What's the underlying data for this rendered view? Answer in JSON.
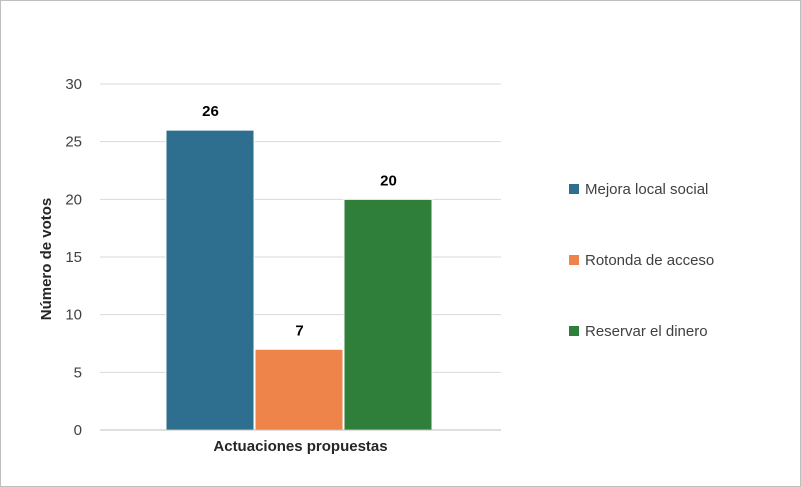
{
  "chart_data": {
    "type": "bar",
    "title": "",
    "xlabel": "Actuaciones propuestas",
    "ylabel": "Número de votos",
    "ylim": [
      0,
      30
    ],
    "yticks": [
      0,
      5,
      10,
      15,
      20,
      25,
      30
    ],
    "grid": true,
    "legend_position": "right",
    "categories": [
      "Actuaciones propuestas"
    ],
    "series": [
      {
        "name": "Mejora local social",
        "values": [
          26
        ],
        "color": "#2e6e8e"
      },
      {
        "name": "Rotonda de acceso",
        "values": [
          7
        ],
        "color": "#ee8449"
      },
      {
        "name": "Reservar el dinero",
        "values": [
          20
        ],
        "color": "#2f7f3b"
      }
    ]
  }
}
